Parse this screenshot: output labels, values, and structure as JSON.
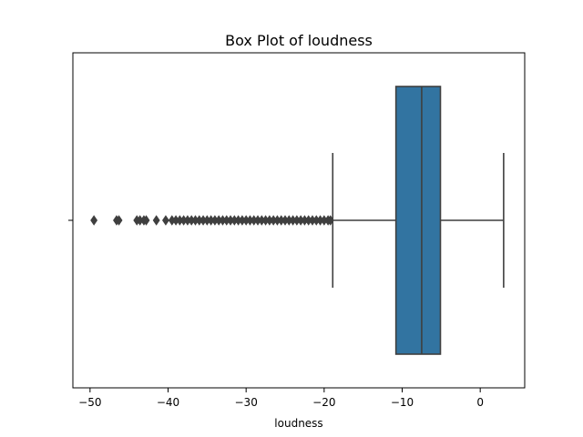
{
  "chart_data": {
    "type": "box",
    "orientation": "horizontal",
    "title": "Box Plot of loudness",
    "xlabel": "loudness",
    "ylabel": "",
    "xlim": [
      -52.2,
      5.7
    ],
    "x_ticks": [
      -50,
      -40,
      -30,
      -20,
      -10,
      0
    ],
    "x_tick_labels": [
      "−50",
      "−40",
      "−30",
      "−20",
      "−10",
      "0"
    ],
    "grid": false,
    "box": {
      "whisker_low": -18.9,
      "q1": -10.8,
      "median": -7.5,
      "q3": -5.1,
      "whisker_high": 3.0,
      "outliers": [
        -49.5,
        -46.6,
        -46.3,
        -44.0,
        -43.6,
        -43.1,
        -42.8,
        -41.5,
        -40.3,
        -39.5,
        -39.0,
        -38.5,
        -38.0,
        -37.5,
        -37.0,
        -36.5,
        -36.0,
        -35.5,
        -35.0,
        -34.5,
        -34.0,
        -33.5,
        -33.0,
        -32.5,
        -32.0,
        -31.5,
        -31.0,
        -30.5,
        -30.0,
        -29.5,
        -29.0,
        -28.5,
        -28.0,
        -27.5,
        -27.0,
        -26.5,
        -26.0,
        -25.5,
        -25.0,
        -24.5,
        -24.0,
        -23.5,
        -23.0,
        -22.5,
        -22.0,
        -21.5,
        -21.0,
        -20.5,
        -20.0,
        -19.5,
        -19.2
      ]
    },
    "colors": {
      "box_fill": "#3274a1",
      "line": "#3f3f3f",
      "outlier": "#3f3f3f",
      "axes": "#000000"
    }
  }
}
